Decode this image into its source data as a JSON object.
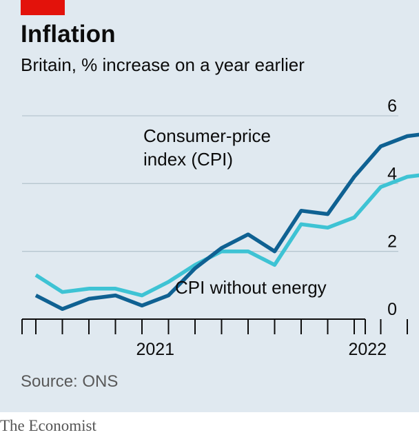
{
  "title": "Inflation",
  "subtitle": "Britain, % increase on a year earlier",
  "source": "Source: ONS",
  "brand": "The Economist",
  "colors": {
    "background": "#e0e9f0",
    "accent_red": "#e3120b",
    "cpi": "#0f6192",
    "cpi_ex_energy": "#3ec3d4",
    "grid": "#b7c6cf"
  },
  "chart_data": {
    "type": "line",
    "x": [
      "2020-10",
      "2020-11",
      "2020-12",
      "2021-01",
      "2021-02",
      "2021-03",
      "2021-04",
      "2021-05",
      "2021-06",
      "2021-07",
      "2021-08",
      "2021-09",
      "2021-10",
      "2021-11",
      "2021-12",
      "2022-01"
    ],
    "series": [
      {
        "name": "Consumer-price index (CPI)",
        "label_lines": [
          "Consumer-price",
          "index (CPI)"
        ],
        "color": "#0f6192",
        "values": [
          0.7,
          0.3,
          0.6,
          0.7,
          0.4,
          0.7,
          1.5,
          2.1,
          2.5,
          2.0,
          3.2,
          3.1,
          4.2,
          5.1,
          5.4,
          5.5
        ]
      },
      {
        "name": "CPI without energy",
        "label_lines": [
          "CPI without energy"
        ],
        "color": "#3ec3d4",
        "values": [
          1.3,
          0.8,
          0.9,
          0.9,
          0.7,
          1.1,
          1.6,
          2.0,
          2.0,
          1.6,
          2.8,
          2.7,
          3.0,
          3.9,
          4.2,
          4.3
        ]
      }
    ],
    "y_ticks": [
      0,
      2,
      4,
      6
    ],
    "y_tick_labels": [
      "0",
      "2",
      "4",
      "6"
    ],
    "ylim": [
      0,
      6
    ],
    "x_labels": [
      {
        "label": "2021",
        "index": 4.5
      },
      {
        "label": "2022",
        "index": 12.5
      }
    ],
    "xlim": [
      -1,
      12.5
    ],
    "grid": true
  }
}
